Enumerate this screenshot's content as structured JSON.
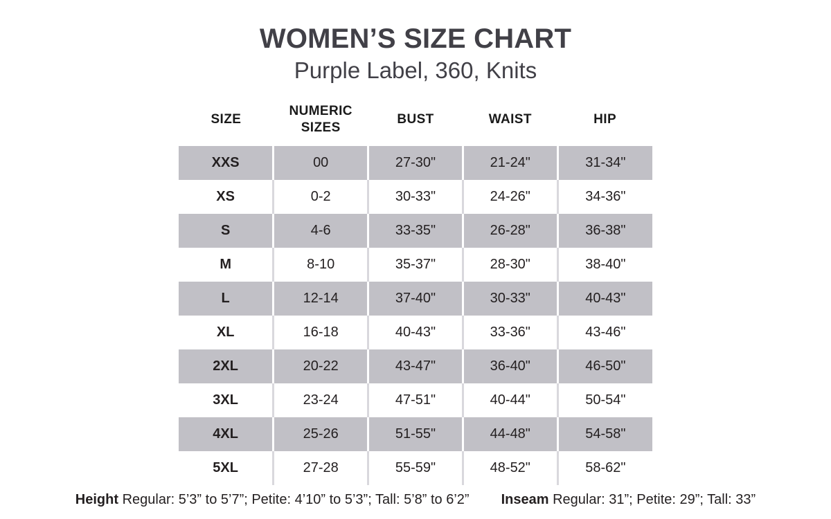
{
  "page": {
    "title": "WOMEN’S SIZE CHART",
    "subtitle": "Purple Label, 360, Knits"
  },
  "table": {
    "columns": [
      "SIZE",
      "NUMERIC SIZES",
      "BUST",
      "WAIST",
      "HIP"
    ],
    "rows": [
      [
        "XXS",
        "00",
        "27-30\"",
        "21-24\"",
        "31-34\""
      ],
      [
        "XS",
        "0-2",
        "30-33\"",
        "24-26\"",
        "34-36\""
      ],
      [
        "S",
        "4-6",
        "33-35\"",
        "26-28\"",
        "36-38\""
      ],
      [
        "M",
        "8-10",
        "35-37\"",
        "28-30\"",
        "38-40\""
      ],
      [
        "L",
        "12-14",
        "37-40\"",
        "30-33\"",
        "40-43\""
      ],
      [
        "XL",
        "16-18",
        "40-43\"",
        "33-36\"",
        "43-46\""
      ],
      [
        "2XL",
        "20-22",
        "43-47\"",
        "36-40\"",
        "46-50\""
      ],
      [
        "3XL",
        "23-24",
        "47-51\"",
        "40-44\"",
        "50-54\""
      ],
      [
        "4XL",
        "25-26",
        "51-55\"",
        "44-48\"",
        "54-58\""
      ],
      [
        "5XL",
        "27-28",
        "55-59\"",
        "48-52\"",
        "58-62\""
      ]
    ],
    "stripe_color": "#c1c0c6",
    "separator_color_on_white": "#d9d8dd"
  },
  "footer": {
    "height_label": "Height",
    "height_text": "Regular: 5’3” to 5’7”; Petite: 4’10” to 5’3”; Tall: 5’8” to 6’2”",
    "inseam_label": "Inseam",
    "inseam_text": "Regular: 31”;  Petite: 29”; Tall: 33”"
  },
  "colors": {
    "title_text": "#414047",
    "body_text": "#231f20"
  }
}
